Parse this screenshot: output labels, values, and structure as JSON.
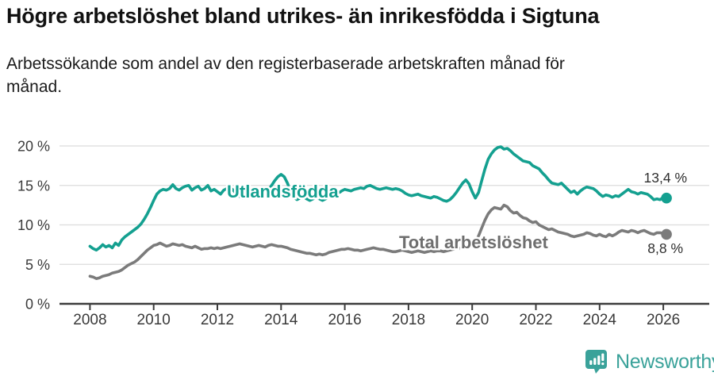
{
  "header": {
    "title": "Högre arbetslöshet bland utrikes- än inrikesfödda i Sigtuna",
    "subtitle": "Arbetssökande som andel av den registerbaserade arbetskraften månad för\nmånad."
  },
  "footer": {
    "brand": "Newsworthy",
    "brand_color": "#3aa29a",
    "logo_icon": "chart-bars-exclamation-bubble"
  },
  "chart_data": {
    "type": "line",
    "title": "Högre arbetslöshet bland utrikes- än inrikesfödda i Sigtuna",
    "xlabel": "",
    "ylabel": "",
    "ylim": [
      0,
      20
    ],
    "grid": "horizontal",
    "x_start": 2008.0,
    "x_step": 0.1,
    "x_end": 2026.1,
    "x_ticks": [
      2008,
      2010,
      2012,
      2014,
      2016,
      2018,
      2020,
      2022,
      2024,
      2026
    ],
    "x_tick_labels": [
      "2008",
      "2010",
      "2012",
      "2014",
      "2016",
      "2018",
      "2020",
      "2022",
      "2024",
      "2026"
    ],
    "y_ticks": [
      0,
      5,
      10,
      15,
      20
    ],
    "y_tick_labels": [
      "0 %",
      "5 %",
      "10 %",
      "15 %",
      "20 %"
    ],
    "series": [
      {
        "name": "Utlandsfödda",
        "color": "#14a090",
        "label_color": "#14a090",
        "end_label": "13,4 %",
        "end_value": 13.4,
        "values": [
          7.3,
          7.0,
          6.8,
          7.1,
          7.5,
          7.2,
          7.4,
          7.1,
          7.7,
          7.4,
          8.1,
          8.5,
          8.8,
          9.1,
          9.4,
          9.7,
          10.1,
          10.7,
          11.4,
          12.2,
          13.1,
          13.9,
          14.3,
          14.5,
          14.4,
          14.6,
          15.1,
          14.6,
          14.4,
          14.7,
          14.9,
          15.0,
          14.4,
          14.7,
          14.9,
          14.4,
          14.6,
          15.0,
          14.3,
          14.5,
          14.2,
          13.9,
          14.4,
          14.6,
          14.7,
          14.4,
          13.9,
          13.6,
          13.4,
          13.6,
          13.8,
          13.6,
          13.5,
          13.7,
          13.8,
          14.0,
          14.4,
          15.0,
          15.6,
          16.1,
          16.4,
          16.1,
          15.3,
          14.2,
          13.5,
          13.2,
          13.4,
          13.6,
          13.3,
          13.1,
          13.3,
          13.5,
          13.3,
          13.1,
          13.3,
          13.5,
          13.7,
          13.6,
          14.0,
          14.3,
          14.5,
          14.4,
          14.3,
          14.5,
          14.6,
          14.7,
          14.6,
          14.9,
          15.0,
          14.8,
          14.6,
          14.5,
          14.6,
          14.7,
          14.6,
          14.5,
          14.6,
          14.5,
          14.3,
          14.0,
          13.8,
          13.7,
          13.8,
          13.9,
          13.7,
          13.6,
          13.5,
          13.4,
          13.6,
          13.5,
          13.3,
          13.1,
          13.0,
          13.2,
          13.6,
          14.1,
          14.7,
          15.3,
          15.7,
          15.2,
          14.2,
          13.4,
          14.1,
          15.6,
          17.1,
          18.3,
          19.0,
          19.5,
          19.8,
          19.9,
          19.6,
          19.7,
          19.4,
          19.0,
          18.7,
          18.4,
          18.1,
          18.0,
          17.9,
          17.5,
          17.3,
          17.1,
          16.6,
          16.2,
          15.7,
          15.3,
          15.2,
          15.1,
          15.3,
          14.9,
          14.5,
          14.1,
          14.3,
          13.9,
          14.3,
          14.6,
          14.8,
          14.7,
          14.6,
          14.3,
          13.9,
          13.6,
          13.8,
          13.7,
          13.5,
          13.7,
          13.6,
          13.9,
          14.2,
          14.5,
          14.2,
          14.1,
          13.9,
          14.1,
          14.0,
          13.9,
          13.6,
          13.2,
          13.3,
          13.2,
          13.5,
          13.4
        ]
      },
      {
        "name": "Total arbetslöshet",
        "color": "#7b7b7b",
        "label_color": "#6e6e6e",
        "end_label": "8,8 %",
        "end_value": 8.8,
        "values": [
          3.5,
          3.4,
          3.2,
          3.3,
          3.5,
          3.6,
          3.7,
          3.9,
          4.0,
          4.1,
          4.3,
          4.6,
          4.9,
          5.1,
          5.3,
          5.6,
          6.0,
          6.4,
          6.8,
          7.1,
          7.4,
          7.5,
          7.7,
          7.5,
          7.3,
          7.4,
          7.6,
          7.5,
          7.4,
          7.5,
          7.3,
          7.2,
          7.1,
          7.3,
          7.1,
          6.9,
          7.0,
          7.0,
          7.1,
          7.0,
          7.1,
          7.0,
          7.1,
          7.2,
          7.3,
          7.4,
          7.5,
          7.6,
          7.5,
          7.4,
          7.3,
          7.2,
          7.3,
          7.4,
          7.3,
          7.2,
          7.4,
          7.5,
          7.4,
          7.3,
          7.3,
          7.2,
          7.1,
          6.9,
          6.8,
          6.7,
          6.6,
          6.5,
          6.4,
          6.4,
          6.3,
          6.2,
          6.3,
          6.2,
          6.3,
          6.5,
          6.6,
          6.7,
          6.8,
          6.9,
          6.9,
          7.0,
          6.9,
          6.8,
          6.8,
          6.7,
          6.8,
          6.9,
          7.0,
          7.1,
          7.0,
          6.9,
          6.9,
          6.8,
          6.7,
          6.6,
          6.6,
          6.7,
          6.8,
          6.7,
          6.6,
          6.5,
          6.6,
          6.7,
          6.6,
          6.5,
          6.6,
          6.7,
          6.6,
          6.7,
          6.7,
          6.6,
          6.7,
          6.8,
          6.9,
          7.0,
          7.0,
          7.1,
          7.1,
          7.2,
          7.3,
          7.7,
          8.6,
          9.6,
          10.6,
          11.4,
          11.9,
          12.2,
          12.1,
          12.0,
          12.5,
          12.3,
          11.8,
          11.5,
          11.6,
          11.2,
          10.9,
          10.8,
          10.5,
          10.3,
          10.4,
          10.0,
          9.8,
          9.6,
          9.4,
          9.5,
          9.3,
          9.1,
          9.0,
          8.9,
          8.8,
          8.6,
          8.5,
          8.6,
          8.7,
          8.8,
          9.0,
          8.9,
          8.7,
          8.6,
          8.8,
          8.6,
          8.5,
          8.8,
          8.6,
          8.8,
          9.1,
          9.3,
          9.2,
          9.1,
          9.3,
          9.2,
          9.0,
          9.2,
          9.3,
          9.1,
          8.9,
          8.8,
          9.0,
          9.0,
          8.9,
          8.8
        ]
      }
    ],
    "legend_position": "labels-on-lines"
  }
}
